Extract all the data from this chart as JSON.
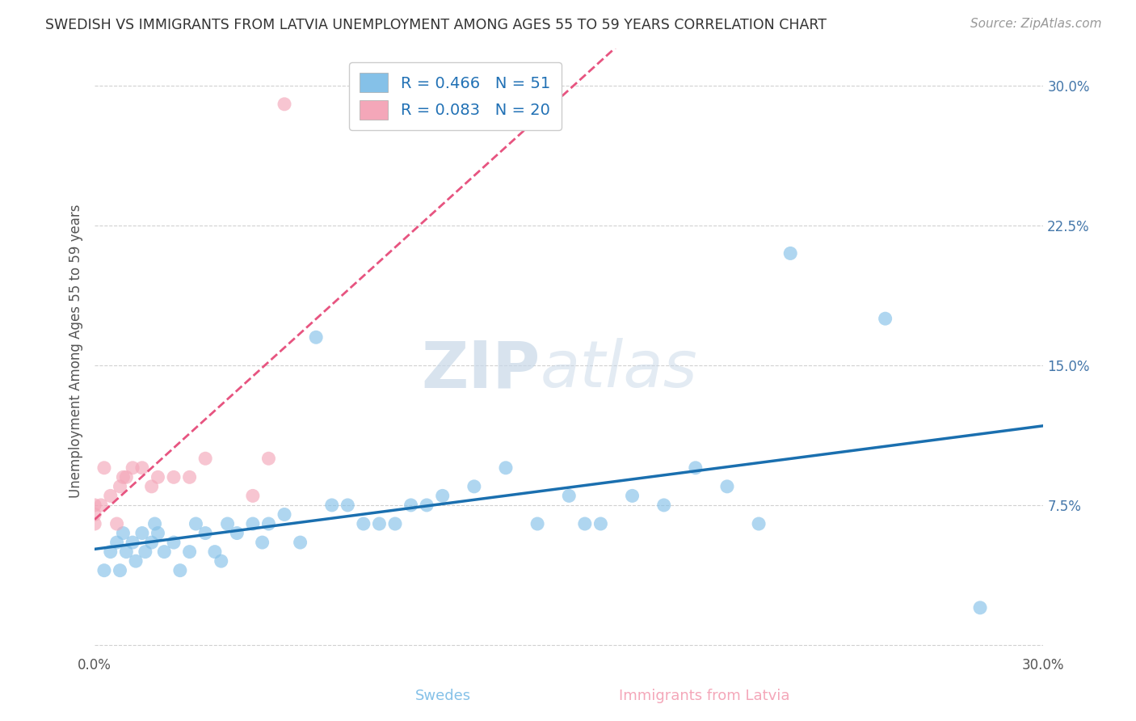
{
  "title": "SWEDISH VS IMMIGRANTS FROM LATVIA UNEMPLOYMENT AMONG AGES 55 TO 59 YEARS CORRELATION CHART",
  "source": "Source: ZipAtlas.com",
  "ylabel": "Unemployment Among Ages 55 to 59 years",
  "xlabel_swedes": "Swedes",
  "xlabel_immigrants": "Immigrants from Latvia",
  "xlim": [
    0.0,
    0.3
  ],
  "ylim": [
    -0.005,
    0.32
  ],
  "yticks": [
    0.0,
    0.075,
    0.15,
    0.225,
    0.3
  ],
  "ytick_labels": [
    "",
    "7.5%",
    "15.0%",
    "22.5%",
    "30.0%"
  ],
  "xticks": [
    0.0,
    0.3
  ],
  "xtick_labels": [
    "0.0%",
    "30.0%"
  ],
  "r_swedes": 0.466,
  "n_swedes": 51,
  "r_immigrants": 0.083,
  "n_immigrants": 20,
  "swedes_color": "#85c1e8",
  "immigrants_color": "#f4a7b9",
  "swedes_line_color": "#1a6faf",
  "immigrants_line_color": "#e75480",
  "swedes_x": [
    0.003,
    0.005,
    0.007,
    0.008,
    0.009,
    0.01,
    0.012,
    0.013,
    0.015,
    0.016,
    0.018,
    0.019,
    0.02,
    0.022,
    0.025,
    0.027,
    0.03,
    0.032,
    0.035,
    0.038,
    0.04,
    0.042,
    0.045,
    0.05,
    0.053,
    0.055,
    0.06,
    0.065,
    0.07,
    0.075,
    0.08,
    0.085,
    0.09,
    0.095,
    0.1,
    0.105,
    0.11,
    0.12,
    0.13,
    0.14,
    0.15,
    0.155,
    0.16,
    0.17,
    0.18,
    0.19,
    0.2,
    0.21,
    0.22,
    0.25,
    0.28
  ],
  "swedes_y": [
    0.04,
    0.05,
    0.055,
    0.04,
    0.06,
    0.05,
    0.055,
    0.045,
    0.06,
    0.05,
    0.055,
    0.065,
    0.06,
    0.05,
    0.055,
    0.04,
    0.05,
    0.065,
    0.06,
    0.05,
    0.045,
    0.065,
    0.06,
    0.065,
    0.055,
    0.065,
    0.07,
    0.055,
    0.165,
    0.075,
    0.075,
    0.065,
    0.065,
    0.065,
    0.075,
    0.075,
    0.08,
    0.085,
    0.095,
    0.065,
    0.08,
    0.065,
    0.065,
    0.08,
    0.075,
    0.095,
    0.085,
    0.065,
    0.21,
    0.175,
    0.02
  ],
  "immigrants_x": [
    0.0,
    0.0,
    0.0,
    0.002,
    0.003,
    0.005,
    0.007,
    0.008,
    0.009,
    0.01,
    0.012,
    0.015,
    0.018,
    0.02,
    0.025,
    0.03,
    0.035,
    0.05,
    0.055,
    0.06
  ],
  "immigrants_y": [
    0.065,
    0.07,
    0.075,
    0.075,
    0.095,
    0.08,
    0.065,
    0.085,
    0.09,
    0.09,
    0.095,
    0.095,
    0.085,
    0.09,
    0.09,
    0.09,
    0.1,
    0.08,
    0.1,
    0.29
  ]
}
